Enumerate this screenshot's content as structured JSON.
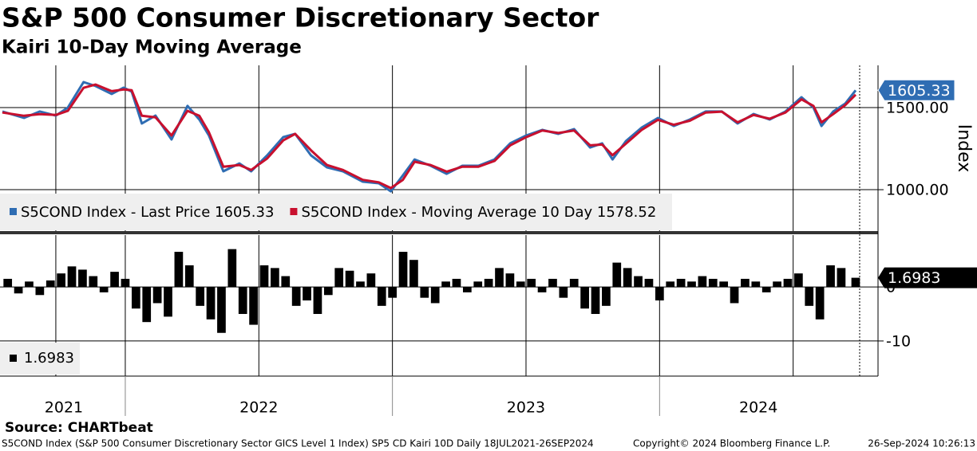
{
  "title": "S&P 500 Consumer Discretionary Sector",
  "subtitle": "Kairi 10-Day Moving Average",
  "source": "Source: CHARTbeat",
  "footer": {
    "description": "S5COND Index (S&P 500 Consumer Discretionary Sector GICS Level 1 Index) SP5 CD Kairi 10D  Daily 18JUL2021-26SEP2024",
    "copyright": "Copyright© 2024 Bloomberg Finance L.P.",
    "timestamp": "26-Sep-2024 10:26:13"
  },
  "chart_data": [
    {
      "type": "line",
      "y_label": "Index",
      "xlim": [
        2021.54,
        2024.74
      ],
      "ylim": [
        748,
        1757
      ],
      "yticks": [
        {
          "value": 1000,
          "label": "1000.00"
        },
        {
          "value": 1500,
          "label": "1500.00"
        }
      ],
      "xgrid": [
        2021.74,
        2022,
        2022.5,
        2023,
        2023.5,
        2024,
        2024.5
      ],
      "x": [
        2021.54,
        2021.621,
        2021.68,
        2021.74,
        2021.785,
        2021.844,
        2021.889,
        2021.949,
        2021.994,
        2022.024,
        2022.062,
        2022.113,
        2022.173,
        2022.233,
        2022.277,
        2022.313,
        2022.367,
        2022.427,
        2022.471,
        2022.531,
        2022.591,
        2022.636,
        2022.695,
        2022.755,
        2022.815,
        2022.889,
        2022.949,
        2022.994,
        2023.039,
        2023.083,
        2023.143,
        2023.203,
        2023.262,
        2023.322,
        2023.382,
        2023.441,
        2023.501,
        2023.561,
        2023.621,
        2023.68,
        2023.74,
        2023.785,
        2023.824,
        2023.874,
        2023.934,
        2023.994,
        2024.053,
        2024.113,
        2024.173,
        2024.233,
        2024.292,
        2024.352,
        2024.412,
        2024.471,
        2024.531,
        2024.576,
        2024.606,
        2024.65,
        2024.695,
        2024.734
      ],
      "series": [
        {
          "name": "S5COND Index - Last Price 1605.33",
          "color": "#2f6db3",
          "values": [
            1476,
            1437,
            1476,
            1451,
            1500,
            1655,
            1631,
            1583,
            1621,
            1597,
            1403,
            1451,
            1306,
            1510,
            1427,
            1330,
            1112,
            1160,
            1112,
            1209,
            1320,
            1340,
            1209,
            1136,
            1112,
            1049,
            1039,
            990,
            1087,
            1184,
            1146,
            1097,
            1146,
            1146,
            1184,
            1282,
            1330,
            1364,
            1340,
            1369,
            1257,
            1282,
            1184,
            1296,
            1379,
            1437,
            1388,
            1427,
            1476,
            1476,
            1403,
            1461,
            1427,
            1476,
            1563,
            1500,
            1388,
            1476,
            1524,
            1605.33
          ]
        },
        {
          "name": "S5COND Index - Moving Average 10 Day 1578.52",
          "color": "#c8102e",
          "values": [
            1470,
            1450,
            1460,
            1455,
            1480,
            1620,
            1640,
            1600,
            1610,
            1605,
            1450,
            1440,
            1330,
            1480,
            1450,
            1350,
            1140,
            1150,
            1120,
            1190,
            1300,
            1340,
            1240,
            1150,
            1120,
            1060,
            1045,
            1010,
            1060,
            1170,
            1150,
            1110,
            1140,
            1140,
            1175,
            1270,
            1320,
            1360,
            1345,
            1360,
            1270,
            1275,
            1210,
            1280,
            1365,
            1425,
            1395,
            1420,
            1470,
            1475,
            1410,
            1455,
            1432,
            1470,
            1550,
            1510,
            1410,
            1460,
            1515,
            1578.52
          ]
        }
      ]
    },
    {
      "type": "bar",
      "xlim": [
        2021.54,
        2024.74
      ],
      "ylim": [
        -16.5,
        9.6
      ],
      "yticks": [
        -10,
        0
      ],
      "color": "#000000",
      "xticks": [
        {
          "value": 2021,
          "label": "2021"
        },
        {
          "value": 2022,
          "label": "2022"
        },
        {
          "value": 2023,
          "label": "2023"
        },
        {
          "value": 2024,
          "label": "2024"
        }
      ],
      "x": [
        2021.56,
        2021.6,
        2021.64,
        2021.68,
        2021.72,
        2021.76,
        2021.8,
        2021.84,
        2021.88,
        2021.92,
        2021.96,
        2022.0,
        2022.04,
        2022.08,
        2022.12,
        2022.16,
        2022.2,
        2022.24,
        2022.28,
        2022.32,
        2022.36,
        2022.4,
        2022.44,
        2022.48,
        2022.52,
        2022.56,
        2022.6,
        2022.64,
        2022.68,
        2022.72,
        2022.76,
        2022.8,
        2022.84,
        2022.88,
        2022.92,
        2022.96,
        2023.0,
        2023.04,
        2023.08,
        2023.12,
        2023.16,
        2023.2,
        2023.24,
        2023.28,
        2023.32,
        2023.36,
        2023.4,
        2023.44,
        2023.48,
        2023.52,
        2023.56,
        2023.6,
        2023.64,
        2023.68,
        2023.72,
        2023.76,
        2023.8,
        2023.84,
        2023.88,
        2023.92,
        2023.96,
        2024.0,
        2024.04,
        2024.08,
        2024.12,
        2024.16,
        2024.2,
        2024.24,
        2024.28,
        2024.32,
        2024.36,
        2024.4,
        2024.44,
        2024.48,
        2024.52,
        2024.56,
        2024.6,
        2024.64,
        2024.68,
        2024.734
      ],
      "values": [
        1.5,
        -1.2,
        1,
        -1.5,
        1.2,
        2.5,
        3.8,
        3.2,
        2,
        -1,
        2.8,
        1.5,
        -4,
        -6.5,
        -3,
        -5.5,
        6.5,
        4,
        -3.5,
        -6,
        -8.5,
        7,
        -5,
        -7,
        4,
        3.5,
        2,
        -3.5,
        -2.5,
        -5,
        -1.5,
        3.5,
        3,
        1,
        2.5,
        -3.5,
        -2,
        6.5,
        5,
        -2,
        -3,
        1,
        1.5,
        -1,
        1,
        1.5,
        3.5,
        2.5,
        1,
        1.5,
        -1,
        1.5,
        -2,
        1.5,
        -4,
        -5,
        -3.5,
        4.5,
        3.5,
        2,
        1.5,
        -2.5,
        1,
        1.5,
        1,
        2,
        1.5,
        1,
        -3,
        1.5,
        1,
        -1,
        1,
        1.5,
        2.5,
        -3.5,
        -6,
        4,
        3.5,
        1.6983
      ]
    }
  ]
}
